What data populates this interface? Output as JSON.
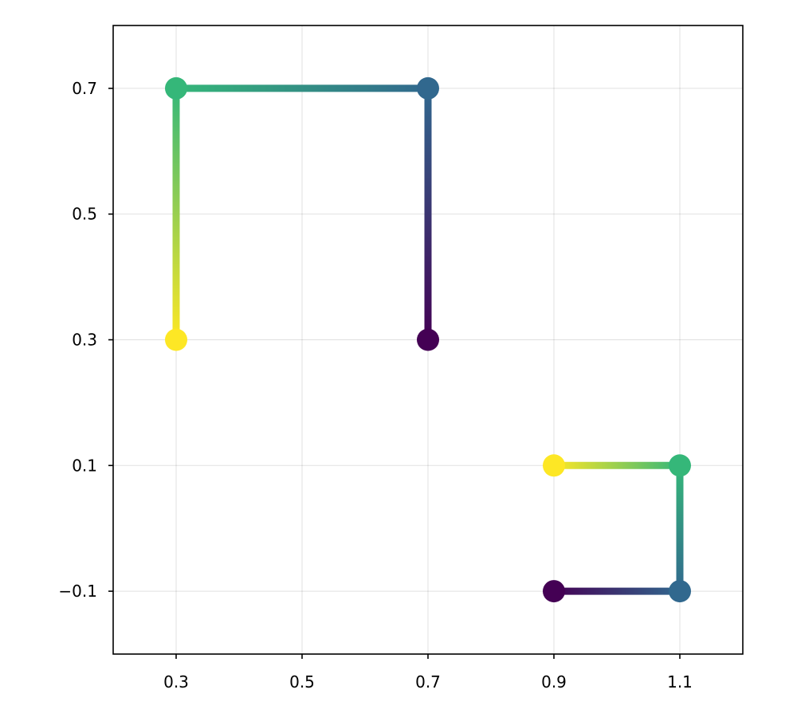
{
  "chart_data": {
    "type": "line",
    "title": "",
    "xlabel": "",
    "ylabel": "",
    "xlim": [
      0.2,
      1.2
    ],
    "ylim": [
      -0.2,
      0.8
    ],
    "x_ticks": [
      "0.3",
      "0.5",
      "0.7",
      "0.9",
      "1.1"
    ],
    "x_tick_values": [
      0.3,
      0.5,
      0.7,
      0.9,
      1.1
    ],
    "y_ticks": [
      "−0.1",
      "0.1",
      "0.3",
      "0.5",
      "0.7"
    ],
    "y_tick_values": [
      -0.1,
      0.1,
      0.3,
      0.5,
      0.7
    ],
    "grid": true,
    "colormap": "viridis",
    "colormap_stops": [
      "#440154",
      "#3b528b",
      "#21918c",
      "#5ec962",
      "#fde725"
    ],
    "series": [
      {
        "x": [
          0.7,
          0.7,
          0.3,
          0.3
        ],
        "y": [
          0.3,
          0.7,
          0.7,
          0.3
        ],
        "point_colors": [
          "#440154",
          "#31688e",
          "#35b779",
          "#fde725"
        ]
      },
      {
        "x": [
          0.9,
          1.1,
          1.1,
          0.9
        ],
        "y": [
          -0.1,
          -0.1,
          0.1,
          0.1
        ],
        "point_colors": [
          "#440154",
          "#31688e",
          "#35b779",
          "#fde725"
        ]
      }
    ]
  }
}
